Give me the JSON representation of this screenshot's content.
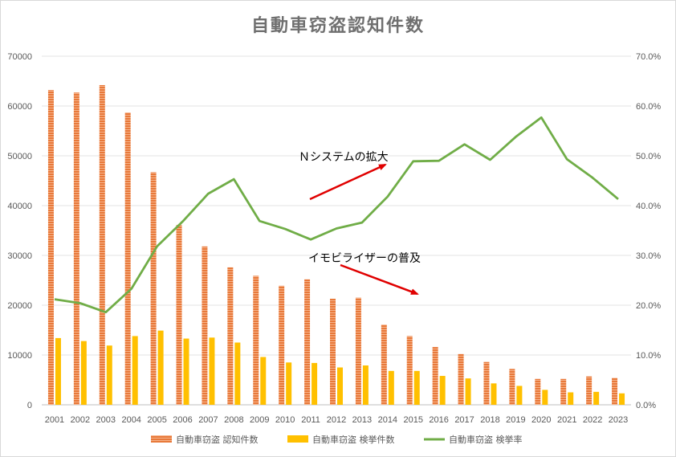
{
  "chart_data": {
    "title": "自動車窃盗認知件数",
    "type": "bar+line",
    "categories": [
      "2001",
      "2002",
      "2003",
      "2004",
      "2005",
      "2006",
      "2007",
      "2008",
      "2009",
      "2010",
      "2011",
      "2012",
      "2013",
      "2014",
      "2015",
      "2016",
      "2017",
      "2018",
      "2019",
      "2020",
      "2021",
      "2022",
      "2023"
    ],
    "y_left": {
      "min": 0,
      "max": 70000,
      "ticks": [
        "0",
        "10000",
        "20000",
        "30000",
        "40000",
        "50000",
        "60000",
        "70000"
      ]
    },
    "y_right": {
      "min": 0,
      "max": 70,
      "ticks": [
        "0.0%",
        "10.0%",
        "20.0%",
        "30.0%",
        "40.0%",
        "50.0%",
        "60.0%",
        "70.0%"
      ]
    },
    "series": [
      {
        "name": "自動車窃盗 認知件数",
        "type": "bar",
        "axis": "left",
        "color": "#ed7d31",
        "values": [
          63200,
          62700,
          64200,
          58700,
          46700,
          36100,
          31800,
          27600,
          25900,
          23900,
          25200,
          21300,
          21500,
          16100,
          13800,
          11600,
          10200,
          8600,
          7200,
          5200,
          5200,
          5700,
          5400
        ]
      },
      {
        "name": "自動車窃盗 検挙件数",
        "type": "bar",
        "axis": "left",
        "color": "#ffc000",
        "values": [
          13400,
          12800,
          11900,
          13800,
          14900,
          13300,
          13500,
          12500,
          9600,
          8500,
          8400,
          7500,
          7900,
          6800,
          6800,
          5800,
          5300,
          4300,
          3800,
          3000,
          2500,
          2600,
          2300
        ]
      },
      {
        "name": "自動車窃盗 検挙率",
        "type": "line",
        "axis": "right",
        "color": "#70ad47",
        "values": [
          21.2,
          20.4,
          18.6,
          23.3,
          31.8,
          36.8,
          42.4,
          45.3,
          36.9,
          35.3,
          33.2,
          35.4,
          36.6,
          41.8,
          48.9,
          49.0,
          52.3,
          49.2,
          53.8,
          57.7,
          49.3,
          45.6,
          41.3
        ]
      }
    ],
    "annotations": [
      {
        "text": "Ｎシステムの拡大"
      },
      {
        "text": "イモビライザーの普及"
      }
    ],
    "legend_position": "bottom",
    "grid": "horizontal"
  }
}
